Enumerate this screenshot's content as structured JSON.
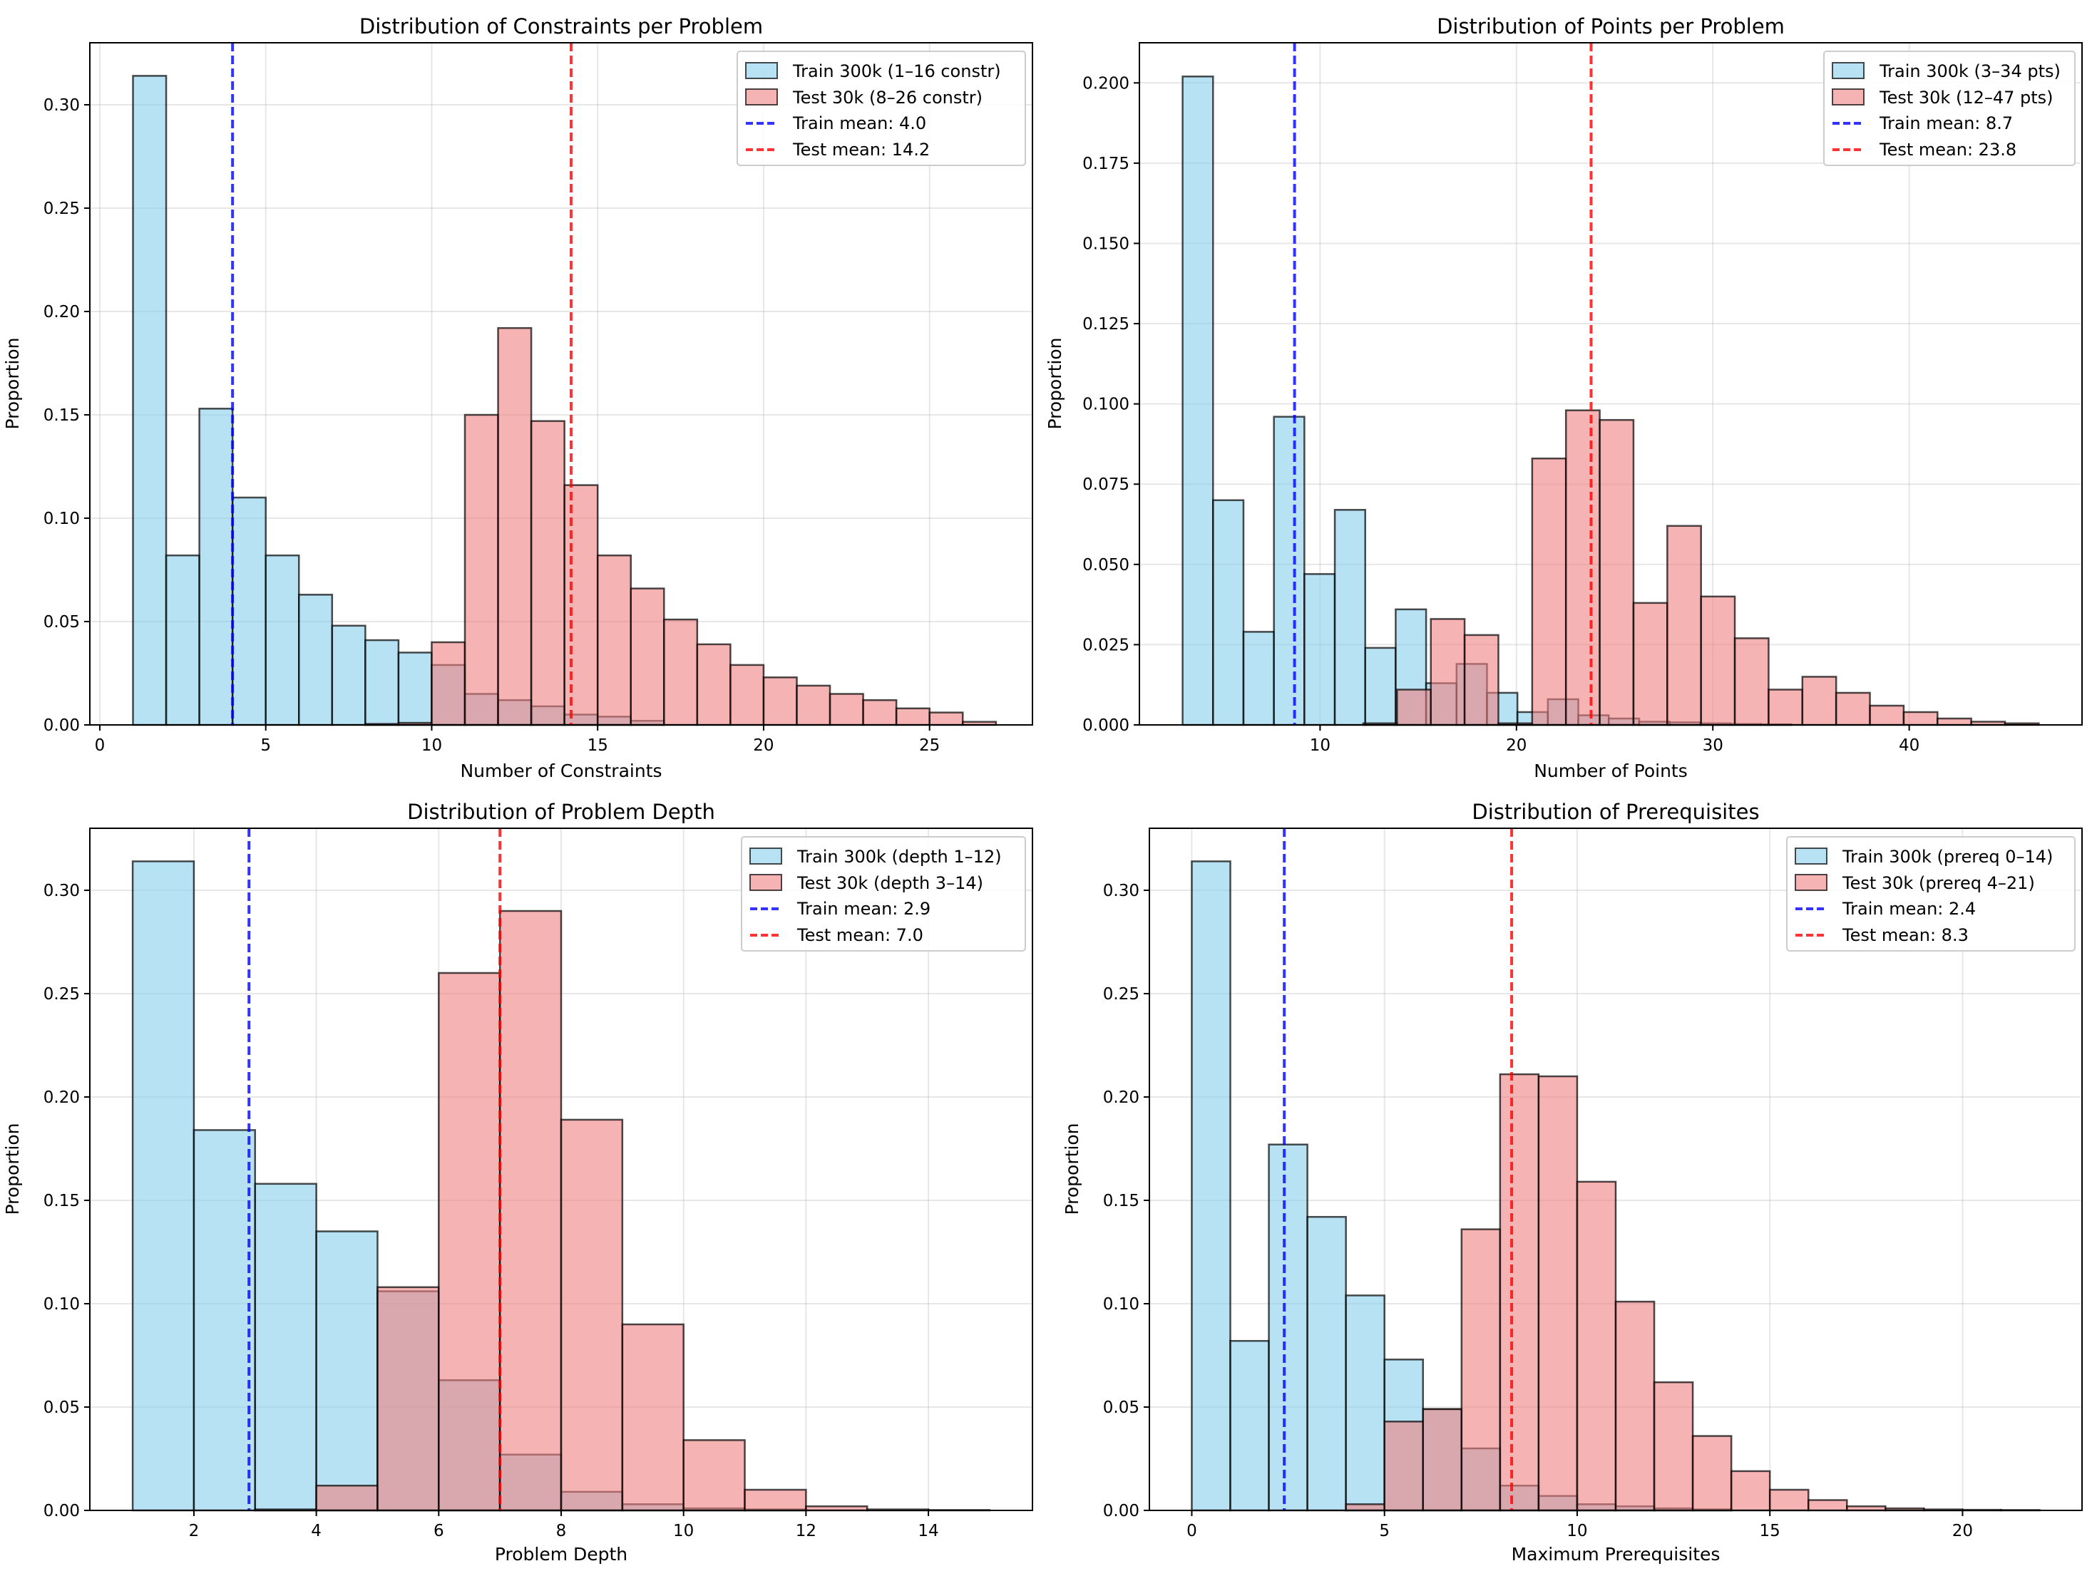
{
  "chart_data": [
    {
      "type": "histogram",
      "title": "Distribution of Constraints per Problem",
      "xlabel": "Number of Constraints",
      "ylabel": "Proportion",
      "xlim": [
        -0.3,
        28.1
      ],
      "ylim": [
        0,
        0.33
      ],
      "xticks": [
        0,
        5,
        10,
        15,
        20,
        25
      ],
      "yticks": [
        0.0,
        0.05,
        0.1,
        0.15,
        0.2,
        0.25,
        0.3
      ],
      "ytick_decimals": 2,
      "grid": true,
      "legend_location": "top-right",
      "series": [
        {
          "name": "Train 300k (1–16 constr)",
          "color": "#87ceeb",
          "bin_start": 1,
          "bin_width": 1,
          "values": [
            0.314,
            0.082,
            0.153,
            0.11,
            0.082,
            0.063,
            0.048,
            0.041,
            0.035,
            0.029,
            0.015,
            0.012,
            0.009,
            0.005,
            0.004,
            0.002
          ]
        },
        {
          "name": "Test 30k (8–26 constr)",
          "color": "#f08080",
          "bin_start": 8,
          "bin_width": 1,
          "values": [
            0.0005,
            0.001,
            0.04,
            0.15,
            0.192,
            0.147,
            0.116,
            0.082,
            0.066,
            0.051,
            0.039,
            0.029,
            0.023,
            0.019,
            0.015,
            0.012,
            0.008,
            0.006,
            0.0015
          ]
        }
      ],
      "mean_lines": [
        {
          "name": "Train mean: 4.0",
          "value": 4.0,
          "color": "#0000ff"
        },
        {
          "name": "Test mean: 14.2",
          "value": 14.2,
          "color": "#ff0000"
        }
      ]
    },
    {
      "type": "histogram",
      "title": "Distribution of Points per Problem",
      "xlabel": "Number of Points",
      "ylabel": "Proportion",
      "xlim": [
        0.8,
        48.8
      ],
      "ylim": [
        0,
        0.2125
      ],
      "xticks": [
        10,
        20,
        30,
        40
      ],
      "yticks": [
        0.0,
        0.025,
        0.05,
        0.075,
        0.1,
        0.125,
        0.15,
        0.175,
        0.2
      ],
      "ytick_decimals": 3,
      "grid": true,
      "legend_location": "top-right",
      "series": [
        {
          "name": "Train 300k (3–34 pts)",
          "color": "#87ceeb",
          "bin_start": 3,
          "bin_width": 1.55,
          "values": [
            0.202,
            0.07,
            0.029,
            0.096,
            0.047,
            0.067,
            0.024,
            0.036,
            0.013,
            0.019,
            0.01,
            0.004,
            0.008,
            0.003,
            0.002,
            0.001,
            0.0008,
            0.0005,
            0.0003,
            0.0002
          ]
        },
        {
          "name": "Test 30k (12–47 pts)",
          "color": "#f08080",
          "bin_start": 12.2,
          "bin_width": 1.72,
          "values": [
            0.0005,
            0.011,
            0.033,
            0.028,
            0.0005,
            0.083,
            0.098,
            0.095,
            0.038,
            0.062,
            0.04,
            0.027,
            0.011,
            0.015,
            0.01,
            0.006,
            0.004,
            0.002,
            0.001,
            0.0005
          ]
        }
      ],
      "mean_lines": [
        {
          "name": "Train mean: 8.7",
          "value": 8.7,
          "color": "#0000ff"
        },
        {
          "name": "Test mean: 23.8",
          "value": 23.8,
          "color": "#ff0000"
        }
      ]
    },
    {
      "type": "histogram",
      "title": "Distribution of Problem Depth",
      "xlabel": "Problem Depth",
      "ylabel": "Proportion",
      "xlim": [
        0.3,
        15.7
      ],
      "ylim": [
        0,
        0.33
      ],
      "xticks": [
        2,
        4,
        6,
        8,
        10,
        12,
        14
      ],
      "yticks": [
        0.0,
        0.05,
        0.1,
        0.15,
        0.2,
        0.25,
        0.3
      ],
      "ytick_decimals": 2,
      "grid": true,
      "legend_location": "top-right",
      "series": [
        {
          "name": "Train 300k (depth 1–12)",
          "color": "#87ceeb",
          "bin_start": 1,
          "bin_width": 1,
          "values": [
            0.314,
            0.184,
            0.158,
            0.135,
            0.106,
            0.063,
            0.027,
            0.009,
            0.003,
            0.001,
            0.0005
          ]
        },
        {
          "name": "Test 30k (depth 3–14)",
          "color": "#f08080",
          "bin_start": 3,
          "bin_width": 1,
          "values": [
            0.0005,
            0.012,
            0.108,
            0.26,
            0.29,
            0.189,
            0.09,
            0.034,
            0.01,
            0.002,
            0.0005,
            0.0002
          ]
        }
      ],
      "mean_lines": [
        {
          "name": "Train mean: 2.9",
          "value": 2.9,
          "color": "#0000ff"
        },
        {
          "name": "Test mean: 7.0",
          "value": 7.0,
          "color": "#ff0000"
        }
      ]
    },
    {
      "type": "histogram",
      "title": "Distribution of Prerequisites",
      "xlabel": "Maximum Prerequisites",
      "ylabel": "Proportion",
      "xlim": [
        -1.1,
        23.1
      ],
      "ylim": [
        0,
        0.33
      ],
      "xticks": [
        0,
        5,
        10,
        15,
        20
      ],
      "yticks": [
        0.0,
        0.05,
        0.1,
        0.15,
        0.2,
        0.25,
        0.3
      ],
      "ytick_decimals": 2,
      "grid": true,
      "legend_location": "top-right",
      "series": [
        {
          "name": "Train 300k (prereq 0–14)",
          "color": "#87ceeb",
          "bin_start": 0,
          "bin_width": 1,
          "values": [
            0.314,
            0.082,
            0.177,
            0.142,
            0.104,
            0.073,
            0.049,
            0.03,
            0.012,
            0.007,
            0.003,
            0.002,
            0.001,
            0.0005
          ]
        },
        {
          "name": "Test 30k (prereq 4–21)",
          "color": "#f08080",
          "bin_start": 4,
          "bin_width": 1,
          "values": [
            0.003,
            0.043,
            0.049,
            0.136,
            0.211,
            0.21,
            0.159,
            0.101,
            0.062,
            0.036,
            0.019,
            0.01,
            0.005,
            0.002,
            0.001,
            0.0005,
            0.0003,
            0.0002
          ]
        }
      ],
      "mean_lines": [
        {
          "name": "Train mean: 2.4",
          "value": 2.4,
          "color": "#0000ff"
        },
        {
          "name": "Test mean: 8.3",
          "value": 8.3,
          "color": "#ff0000"
        }
      ]
    }
  ]
}
